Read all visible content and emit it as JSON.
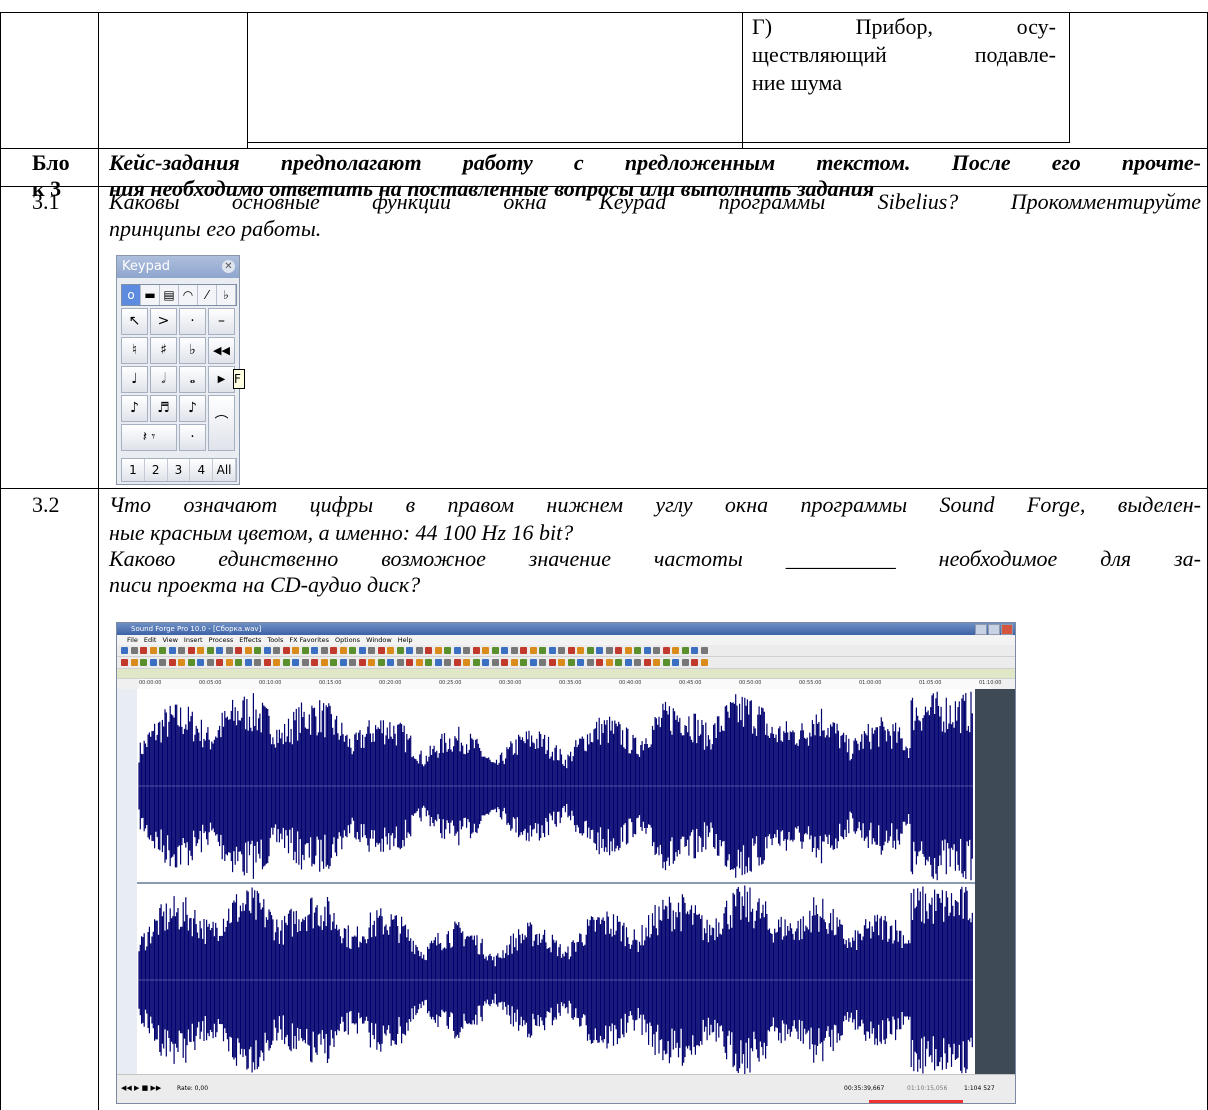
{
  "top_row": {
    "lines": [
      "Г) Прибор, осу-",
      "ществляющий подавле-",
      "ние шума"
    ]
  },
  "block3": {
    "label_line1": "Бло",
    "label_line2": "к 3",
    "text_line1": "Кейс-задания предполагают работу с предложенным текстом. После его прочте-",
    "text_line2": "ния необходимо ответить на поставленные вопросы или выполнить задания"
  },
  "q31": {
    "number": "3.1",
    "line1": "Каковы основные функции окна Keypad программы Sibelius? Прокомментируйте",
    "line2": "принципы его работы."
  },
  "keypad": {
    "title": "Keypad",
    "close": "✕",
    "tabs": [
      "o",
      "▬",
      "▤",
      "◠",
      "⁄",
      "♭"
    ],
    "keys": [
      "↖",
      ">",
      "·",
      "–",
      "♮",
      "♯",
      "♭",
      "◀◀",
      "♩",
      "𝅗𝅥",
      "𝅝",
      "▶",
      "♪",
      "♬",
      "♪",
      "⌒",
      "𝄽 𝄾",
      "·"
    ],
    "layers": [
      "1",
      "2",
      "3",
      "4",
      "All"
    ],
    "tooltip": "F"
  },
  "q32": {
    "number": "3.2",
    "line1": "Что означают цифры в правом нижнем углу окна программы Sound Forge, выделен-",
    "line2": "ные красным цветом, а именно: 44 100 Hz 16 bit?",
    "line3": "Каково единственно возможное значение частоты __________ необходимое для за-",
    "line4": "писи проекта на CD-аудио диск?"
  },
  "soundforge": {
    "title": "Sound Forge Pro 10.0 - [Сборка.wav]",
    "menu": [
      "File",
      "Edit",
      "View",
      "Insert",
      "Process",
      "Effects",
      "Tools",
      "FX Favorites",
      "Options",
      "Window",
      "Help"
    ],
    "ruler": [
      "00:00:00",
      "00:05:00",
      "00:10:00",
      "00:15:00",
      "00:20:00",
      "00:25:00",
      "00:30:00",
      "00:35:00",
      "00:40:00",
      "00:45:00",
      "00:50:00",
      "00:55:00",
      "01:00:00",
      "01:05:00",
      "01:10:00"
    ],
    "rate_label": "Rate: 0,00",
    "position": "00:35:39,667",
    "end_position": "01:10:15,056",
    "zoom": "1:104 527",
    "colors": {
      "wave": "#00006e",
      "background": "#ffffff",
      "accent": "#3d62a6"
    }
  }
}
